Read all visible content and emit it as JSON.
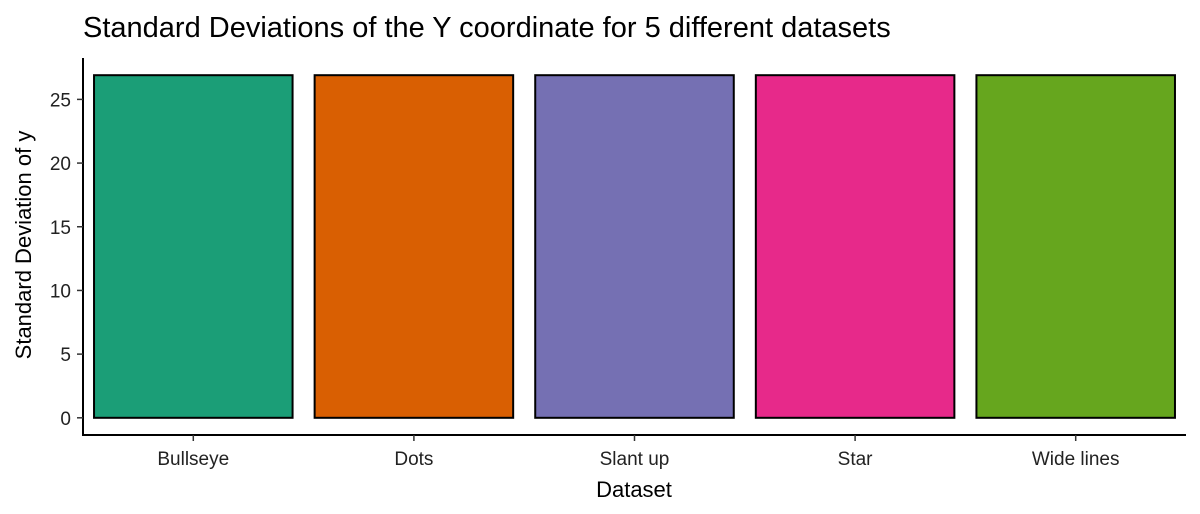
{
  "chart_data": {
    "type": "bar",
    "title": "Standard Deviations of the Y coordinate for 5 different datasets",
    "xlabel": "Dataset",
    "ylabel": "Standard Deviation of y",
    "categories": [
      "Bullseye",
      "Dots",
      "Slant up",
      "Star",
      "Wide lines"
    ],
    "values": [
      26.9,
      26.9,
      26.9,
      26.9,
      26.9
    ],
    "colors": [
      "#1b9e77",
      "#d95f02",
      "#7570b3",
      "#e7298a",
      "#66a61e"
    ],
    "ylim": [
      -1.35,
      28.25
    ],
    "yticks": [
      0,
      5,
      10,
      15,
      20,
      25
    ],
    "grid": false,
    "legend": "none"
  }
}
